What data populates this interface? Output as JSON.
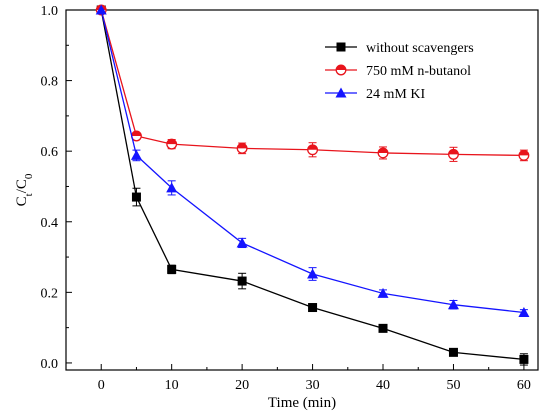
{
  "chart_data": {
    "type": "line",
    "xlabel": "Time (min)",
    "ylabel": {
      "main": "C",
      "sub1": "t",
      "sep": "/C",
      "sub2": "0"
    },
    "xlim": [
      -5,
      62
    ],
    "ylim": [
      -0.02,
      1.0
    ],
    "xticks": [
      0,
      10,
      20,
      30,
      40,
      50,
      60
    ],
    "yticks": [
      0.0,
      0.2,
      0.4,
      0.6,
      0.8,
      1.0
    ],
    "ytick_labels": [
      "0.0",
      "0.2",
      "0.4",
      "0.6",
      "0.8",
      "1.0"
    ],
    "grid": false,
    "legend": "top-right",
    "series": [
      {
        "name": "without scavengers",
        "color": "#000000",
        "marker": "square",
        "x": [
          0,
          5,
          10,
          20,
          30,
          40,
          50,
          60
        ],
        "y": [
          1.0,
          0.47,
          0.265,
          0.232,
          0.157,
          0.098,
          0.03,
          0.01
        ],
        "err": [
          0,
          0.025,
          0.012,
          0.022,
          0.008,
          0.006,
          0.006,
          0.016
        ]
      },
      {
        "name": "750 mM n-butanol",
        "color": "#e8141c",
        "marker": "circle",
        "x": [
          0,
          5,
          10,
          20,
          30,
          40,
          50,
          60
        ],
        "y": [
          1.0,
          0.643,
          0.62,
          0.608,
          0.604,
          0.595,
          0.591,
          0.588
        ],
        "err": [
          0,
          0.006,
          0.013,
          0.015,
          0.02,
          0.017,
          0.02,
          0.015
        ]
      },
      {
        "name": "24 mM KI",
        "color": "#1414ff",
        "marker": "triangle",
        "x": [
          0,
          5,
          10,
          20,
          30,
          40,
          50,
          60
        ],
        "y": [
          1.0,
          0.588,
          0.496,
          0.34,
          0.252,
          0.197,
          0.165,
          0.143
        ],
        "err": [
          0,
          0.015,
          0.02,
          0.013,
          0.018,
          0.01,
          0.012,
          0.008
        ]
      }
    ]
  }
}
